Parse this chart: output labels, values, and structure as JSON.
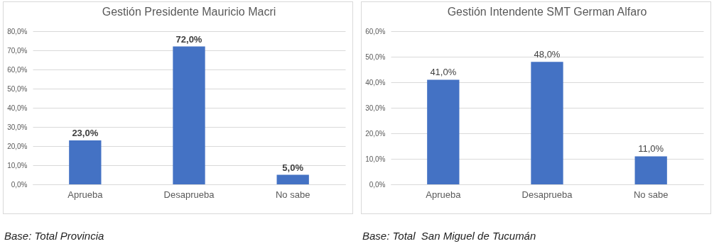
{
  "chart_data": [
    {
      "type": "bar",
      "title": "Gestión Presidente Mauricio Macri",
      "categories": [
        "Aprueba",
        "Desaprueba",
        "No sabe"
      ],
      "values": [
        23,
        72,
        5
      ],
      "color": "#4472c4",
      "value_labels": [
        "23,0%",
        "72,0%",
        "5,0%"
      ],
      "ylim": [
        0,
        80
      ],
      "yticks": [
        {
          "value": 0,
          "label": "0,0%"
        },
        {
          "value": 10,
          "label": "10,0%"
        },
        {
          "value": 20,
          "label": "20,0%"
        },
        {
          "value": 30,
          "label": "30,0%"
        },
        {
          "value": 40,
          "label": "40,0%"
        },
        {
          "value": 50,
          "label": "50,0%"
        },
        {
          "value": 60,
          "label": "60,0%"
        },
        {
          "value": 70,
          "label": "70,0%"
        },
        {
          "value": 80,
          "label": "80,0%"
        }
      ],
      "grid": true,
      "annotations": [
        "Base: Total Provincia"
      ]
    },
    {
      "type": "bar",
      "title": "Gestión Intendente SMT German Alfaro",
      "categories": [
        "Aprueba",
        "Desaprueba",
        "No sabe"
      ],
      "values": [
        41,
        48,
        11
      ],
      "color": "#4472c4",
      "value_labels": [
        "41,0%",
        "48,0%",
        "11,0%"
      ],
      "ylim": [
        0,
        60
      ],
      "yticks": [
        {
          "value": 0,
          "label": "0,0%"
        },
        {
          "value": 10,
          "label": "10,0%"
        },
        {
          "value": 20,
          "label": "20,0%"
        },
        {
          "value": 30,
          "label": "30,0%"
        },
        {
          "value": 40,
          "label": "40,0%"
        },
        {
          "value": 50,
          "label": "50,0%"
        },
        {
          "value": 60,
          "label": "60,0%"
        }
      ],
      "grid": true,
      "annotations": [
        "Base: Total  San Miguel de Tucumán"
      ]
    }
  ]
}
